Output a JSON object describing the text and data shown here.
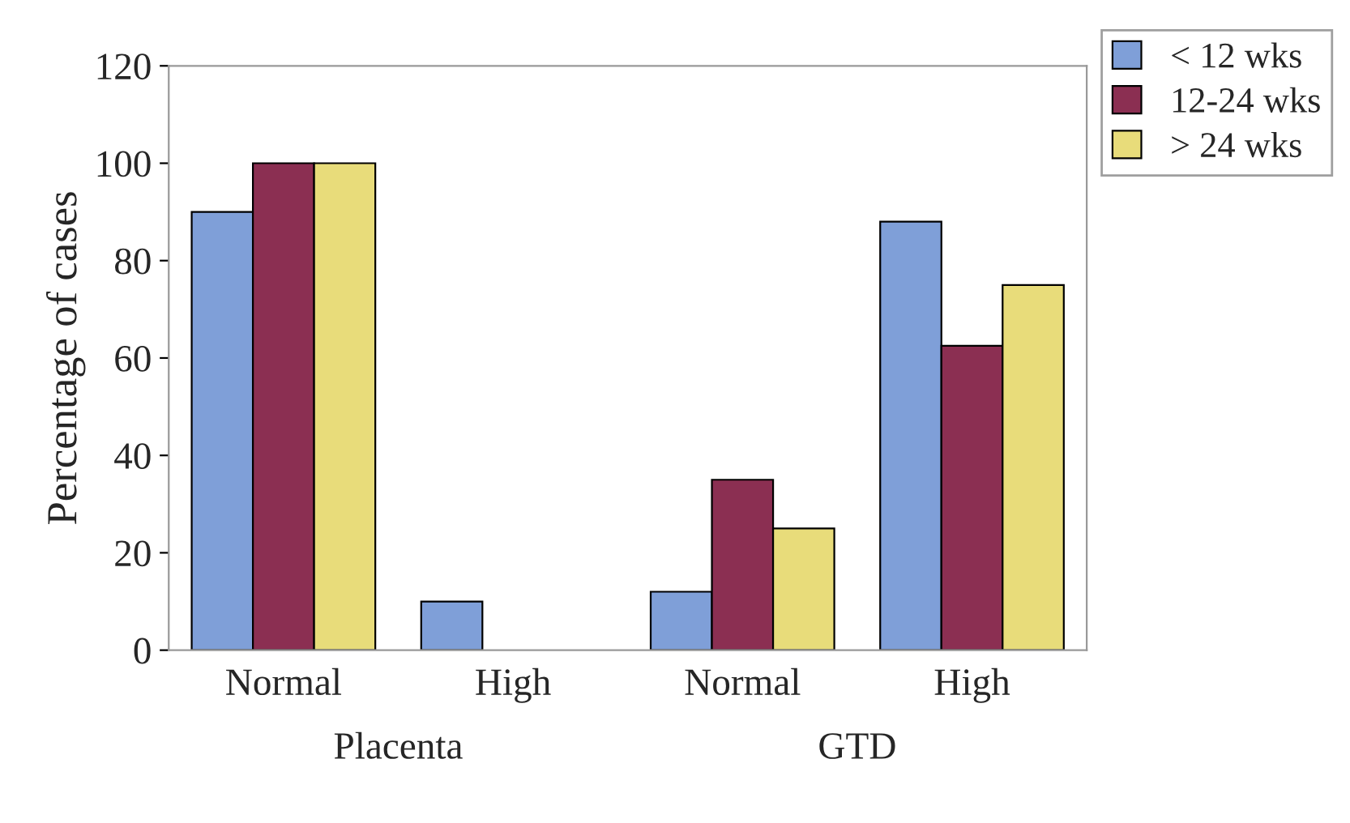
{
  "chart_data": {
    "type": "bar",
    "ylabel": "Percentage of cases",
    "categories": [
      "Normal",
      "High",
      "Normal",
      "High"
    ],
    "series": [
      {
        "name": "< 12 wks",
        "color": "#7f9fd8",
        "values": [
          90,
          10,
          12,
          88
        ]
      },
      {
        "name": "12-24 wks",
        "color": "#8b2f52",
        "values": [
          100,
          null,
          35,
          62.5
        ]
      },
      {
        "name": "> 24 wks",
        "color": "#e8dc7a",
        "values": [
          100,
          null,
          25,
          75
        ]
      }
    ],
    "annotations": [
      "Placenta",
      "GTD"
    ],
    "ylim": [
      0,
      120
    ],
    "yticks": [
      0,
      20,
      40,
      60,
      80,
      100,
      120
    ],
    "grid": false,
    "legend": "top right"
  }
}
